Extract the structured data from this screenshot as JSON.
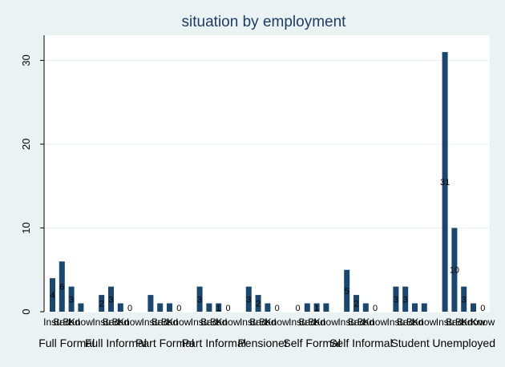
{
  "chart_data": {
    "type": "bar",
    "title": "situation by employment",
    "xlabel": "",
    "ylabel": "",
    "ylim": [
      0,
      33
    ],
    "yticks": [
      0,
      10,
      20,
      30
    ],
    "grid": true,
    "bar_color": "#1a476f",
    "background_color": "#eaf2f3",
    "plot_color": "#ffffff",
    "groups": [
      {
        "name": "Full Formal",
        "bars": [
          {
            "label": "Insu",
            "value": 4,
            "show_label": "4"
          },
          {
            "label": "Bad",
            "value": 6,
            "show_label": "6"
          },
          {
            "label": "Bad",
            "value": 3,
            "show_label": "3"
          },
          {
            "label": "Know",
            "value": 1,
            "show_label": ""
          }
        ]
      },
      {
        "name": "Full Informal",
        "bars": [
          {
            "label": "Insu",
            "value": 2,
            "show_label": "2"
          },
          {
            "label": "Bad",
            "value": 3,
            "show_label": "3"
          },
          {
            "label": "Bad",
            "value": 1,
            "show_label": ""
          },
          {
            "label": "Know",
            "value": 0,
            "show_label": "0"
          }
        ]
      },
      {
        "name": "Part Formal",
        "bars": [
          {
            "label": "Insu",
            "value": 2,
            "show_label": ""
          },
          {
            "label": "Bad",
            "value": 1,
            "show_label": ""
          },
          {
            "label": "Bad",
            "value": 1,
            "show_label": ""
          },
          {
            "label": "Know",
            "value": 0,
            "show_label": "0"
          }
        ]
      },
      {
        "name": "Part Informal",
        "bars": [
          {
            "label": "Insu",
            "value": 3,
            "show_label": "3"
          },
          {
            "label": "Bad",
            "value": 1,
            "show_label": ""
          },
          {
            "label": "Bad",
            "value": 1,
            "show_label": "1"
          },
          {
            "label": "Know",
            "value": 0,
            "show_label": "0"
          }
        ]
      },
      {
        "name": "Pensioner",
        "bars": [
          {
            "label": "Insu",
            "value": 3,
            "show_label": "3"
          },
          {
            "label": "Bad",
            "value": 2,
            "show_label": "2"
          },
          {
            "label": "Bad",
            "value": 1,
            "show_label": ""
          },
          {
            "label": "Know",
            "value": 0,
            "show_label": "0"
          }
        ]
      },
      {
        "name": "Self Formal",
        "bars": [
          {
            "label": "Insu",
            "value": 0,
            "show_label": "0"
          },
          {
            "label": "Bad",
            "value": 1,
            "show_label": ""
          },
          {
            "label": "Bad",
            "value": 1,
            "show_label": "1"
          },
          {
            "label": "Know",
            "value": 1,
            "show_label": ""
          }
        ]
      },
      {
        "name": "Self Informal",
        "bars": [
          {
            "label": "Insu",
            "value": 5,
            "show_label": "5"
          },
          {
            "label": "Bad",
            "value": 2,
            "show_label": "2"
          },
          {
            "label": "Bad",
            "value": 1,
            "show_label": ""
          },
          {
            "label": "Know",
            "value": 0,
            "show_label": "0"
          }
        ]
      },
      {
        "name": "Student",
        "bars": [
          {
            "label": "Insu",
            "value": 3,
            "show_label": "3"
          },
          {
            "label": "Bad",
            "value": 3,
            "show_label": "3"
          },
          {
            "label": "Bad",
            "value": 1,
            "show_label": ""
          },
          {
            "label": "Know",
            "value": 1,
            "show_label": ""
          }
        ]
      },
      {
        "name": "Unemployed",
        "bars": [
          {
            "label": "Insu",
            "value": 31,
            "show_label": "31"
          },
          {
            "label": "Bad",
            "value": 10,
            "show_label": "10"
          },
          {
            "label": "Bad",
            "value": 3,
            "show_label": "3"
          },
          {
            "label": "Know",
            "value": 1,
            "show_label": ""
          },
          {
            "label": "Know",
            "value": 0,
            "show_label": "0"
          }
        ]
      }
    ]
  }
}
